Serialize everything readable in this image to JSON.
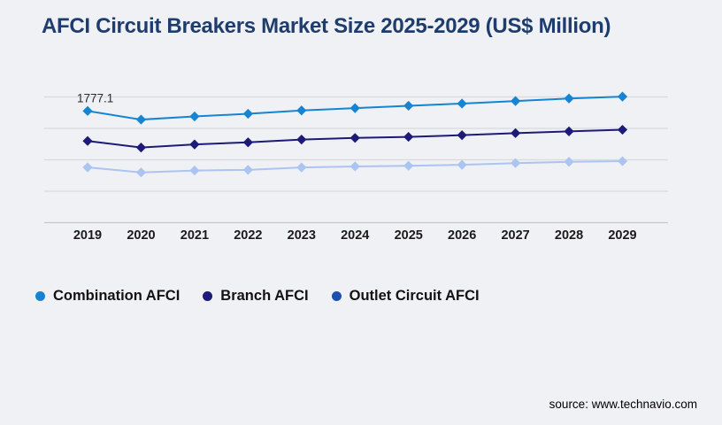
{
  "title": {
    "text": "AFCI Circuit Breakers Market Size 2025-2029 (US$ Million)",
    "color": "#1e3d6e"
  },
  "source": {
    "text": "source: www.technavio.com"
  },
  "colors": {
    "background": "#f0f1f4",
    "gridline": "#d8dade",
    "axis_line": "#c3c6cb",
    "tick_label": "#1b1b1b",
    "annotation": "#2a2a2a"
  },
  "chart_data": {
    "type": "line",
    "title": "AFCI Circuit Breakers Market Size 2025-2029 (US$ Million)",
    "x": [
      2019,
      2020,
      2021,
      2022,
      2023,
      2024,
      2025,
      2026,
      2027,
      2028,
      2029
    ],
    "xlabel": "",
    "ylim": [
      0,
      2250
    ],
    "gridline_values": [
      500,
      1000,
      1500,
      2000
    ],
    "grid": "horizontal-only",
    "y_tick_labels_visible": false,
    "legend_position": "bottom-left",
    "marker": "diamond",
    "point_label": {
      "series": "Combination AFCI",
      "x": 2019,
      "text": "1777.1"
    },
    "series": [
      {
        "name": "Combination AFCI",
        "color": "#1584d3",
        "legend_color": "#1584d3",
        "values": [
          1777.1,
          1640,
          1690,
          1732,
          1785,
          1822,
          1860,
          1895,
          1935,
          1975,
          2005
        ]
      },
      {
        "name": "Branch AFCI",
        "color": "#1d1a78",
        "legend_color": "#1d1a78",
        "values": [
          1300,
          1195,
          1245,
          1278,
          1322,
          1348,
          1365,
          1392,
          1425,
          1452,
          1478
        ]
      },
      {
        "name": "Outlet Circuit AFCI",
        "color": "#abc4f0",
        "legend_color": "#1c4fae",
        "values": [
          880,
          800,
          830,
          840,
          878,
          895,
          905,
          920,
          948,
          968,
          978
        ]
      }
    ]
  }
}
